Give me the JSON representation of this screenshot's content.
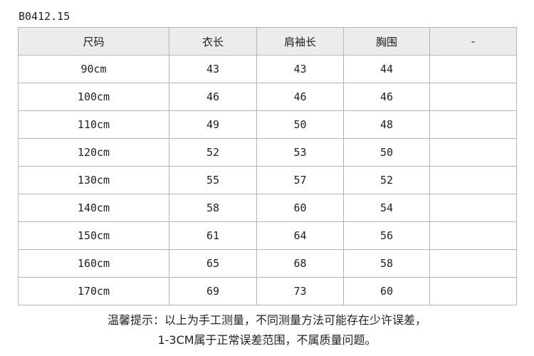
{
  "header": {
    "code": "B0412.15"
  },
  "table": {
    "columns": [
      "尺码",
      "衣长",
      "肩袖长",
      "胸围",
      "-"
    ],
    "rows": [
      [
        "90cm",
        43,
        43,
        44
      ],
      [
        "100cm",
        46,
        46,
        46
      ],
      [
        "110cm",
        49,
        50,
        48
      ],
      [
        "120cm",
        52,
        53,
        50
      ],
      [
        "130cm",
        55,
        57,
        52
      ],
      [
        "140cm",
        58,
        60,
        54
      ],
      [
        "150cm",
        61,
        64,
        56
      ],
      [
        "160cm",
        65,
        68,
        58
      ],
      [
        "170cm",
        69,
        73,
        60
      ]
    ]
  },
  "note": {
    "lines": [
      "温馨提示：以上为手工测量，不同测量方法可能存在少许误差，",
      "1-3CM属于正常误差范围，不属质量问题。"
    ]
  }
}
